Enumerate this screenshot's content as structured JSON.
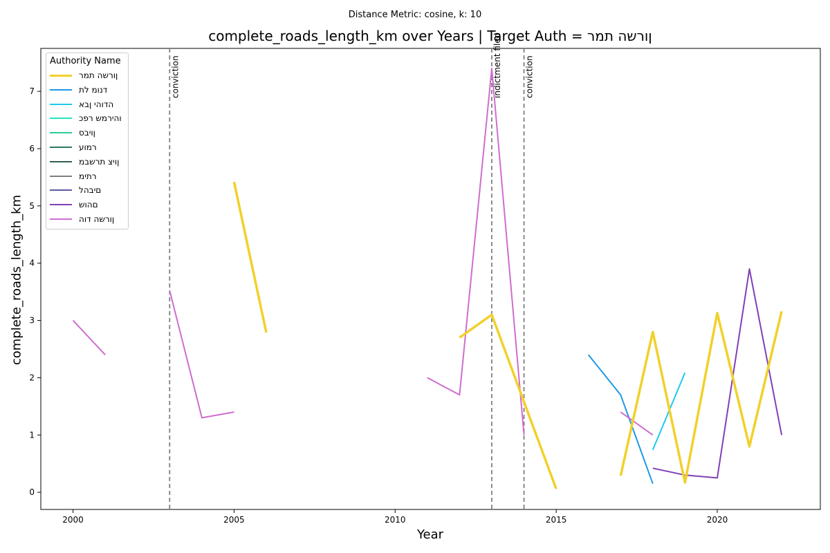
{
  "suptitle": "Distance Metric: cosine, k: 10",
  "chart_data": {
    "type": "line",
    "title": "complete_roads_length_km over Years | Target Auth = ןורשה תמר",
    "xlabel": "Year",
    "ylabel": "complete_roads_length_km",
    "xlim": [
      1999,
      2023.2
    ],
    "ylim": [
      -0.3,
      7.75
    ],
    "xticks": [
      2000,
      2005,
      2010,
      2015,
      2020
    ],
    "yticks": [
      0,
      1,
      2,
      3,
      4,
      5,
      6,
      7
    ],
    "grid": false,
    "legend": {
      "title": "Authority Name",
      "placement": "upper-left"
    },
    "vlines": [
      {
        "x": 2003,
        "label": "conviction"
      },
      {
        "x": 2013,
        "label": "indictment filed"
      },
      {
        "x": 2014,
        "label": "conviction"
      }
    ],
    "series": [
      {
        "name": "ןורשה תמר",
        "color": "#f2d02a",
        "width": 3.5,
        "segments": [
          [
            [
              2005,
              5.42
            ],
            [
              2006,
              2.79
            ]
          ],
          [
            [
              2012,
              2.7
            ],
            [
              2013,
              3.1
            ],
            [
              2015,
              0.06
            ]
          ],
          [
            [
              2017,
              0.29
            ],
            [
              2018,
              2.8
            ],
            [
              2019,
              0.17
            ],
            [
              2020,
              3.13
            ],
            [
              2021,
              0.8
            ],
            [
              2022,
              3.16
            ]
          ]
        ]
      },
      {
        "name": "דנומ לת",
        "color": "#1f97e8",
        "width": 2,
        "segments": [
          [
            [
              2016,
              2.4
            ],
            [
              2017,
              1.7
            ],
            [
              2018,
              0.15
            ]
          ]
        ]
      },
      {
        "name": "הדוהי ןבא",
        "color": "#1ec9f0",
        "width": 2,
        "segments": [
          [
            [
              2018,
              0.74
            ],
            [
              2019,
              2.09
            ]
          ]
        ]
      },
      {
        "name": "והירמש רפכ",
        "color": "#1fe6bf",
        "width": 2,
        "segments": []
      },
      {
        "name": "ןויבס",
        "color": "#2bcc96",
        "width": 2,
        "segments": []
      },
      {
        "name": "רמוע",
        "color": "#2a7a5c",
        "width": 2,
        "segments": []
      },
      {
        "name": "ןויצ תרשבמ",
        "color": "#2f5f4f",
        "width": 2,
        "segments": []
      },
      {
        "name": "רתימ",
        "color": "#7f7f7f",
        "width": 2,
        "segments": []
      },
      {
        "name": "םיבהל",
        "color": "#5a5aa0",
        "width": 2,
        "segments": []
      },
      {
        "name": "םהוש",
        "color": "#7f3fb8",
        "width": 2,
        "segments": [
          [
            [
              2018,
              0.42
            ],
            [
              2019,
              0.3
            ],
            [
              2020,
              0.25
            ],
            [
              2021,
              3.9
            ],
            [
              2022,
              1.0
            ]
          ]
        ]
      },
      {
        "name": "ןורשה דוה",
        "color": "#cf6ccf",
        "width": 2,
        "segments": [
          [
            [
              2000,
              3.0
            ],
            [
              2001,
              2.4
            ]
          ],
          [
            [
              2003,
              3.52
            ],
            [
              2004,
              1.3
            ],
            [
              2005,
              1.4
            ]
          ],
          [
            [
              2011,
              2.0
            ],
            [
              2012,
              1.7
            ],
            [
              2013,
              7.4
            ],
            [
              2014,
              1.0
            ]
          ],
          [
            [
              2017,
              1.4
            ],
            [
              2018,
              1.0
            ]
          ]
        ]
      }
    ]
  }
}
